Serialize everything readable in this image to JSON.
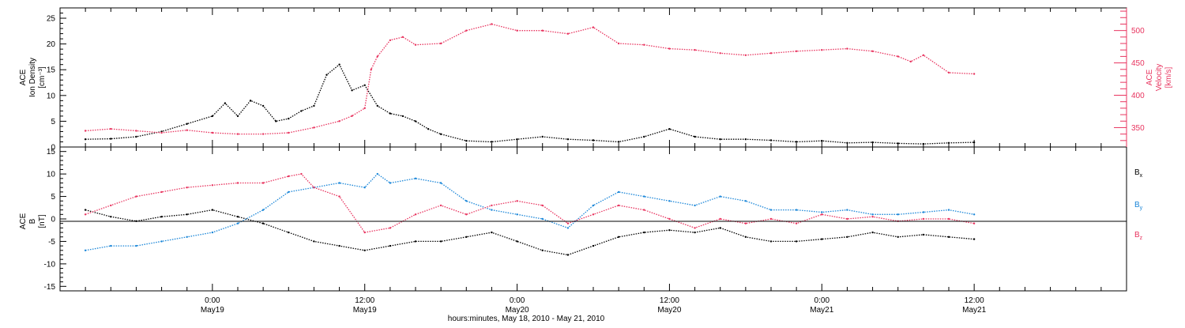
{
  "chart_data": [
    {
      "type": "scatter",
      "panel": "plasma",
      "ylabel_left": [
        "ACE",
        "Ion Density",
        "[cm⁻³]"
      ],
      "ylabel_right": [
        "ACE",
        "Velocity",
        "[km/s]"
      ],
      "ylim_left": [
        0,
        27
      ],
      "yticks_left": [
        "0",
        "5",
        "10",
        "15",
        "20",
        "25"
      ],
      "ylim_right": [
        320,
        535
      ],
      "yticks_right": [
        "350",
        "400",
        "450",
        "500"
      ],
      "colors": {
        "density": "#000000",
        "velocity": "#e8345f"
      },
      "series": [
        {
          "axis": "left",
          "color": "#000000",
          "x": [
            -10,
            -8,
            -6,
            -4,
            -2,
            0,
            1,
            2,
            3,
            4,
            5,
            6,
            7,
            8,
            9,
            10,
            11,
            12,
            13,
            14,
            15,
            16,
            17,
            18,
            20,
            22,
            24,
            26,
            28,
            30,
            32,
            34,
            36,
            38,
            40,
            42,
            44,
            46,
            48,
            50,
            52,
            54,
            56,
            58,
            60
          ],
          "y": [
            1.5,
            1.6,
            2.0,
            3.0,
            4.5,
            6.0,
            8.5,
            6.0,
            9.0,
            8.0,
            5.0,
            5.5,
            7.0,
            8.0,
            14.0,
            16.0,
            11.0,
            12.0,
            8.0,
            6.5,
            6.0,
            5.0,
            3.5,
            2.5,
            1.2,
            1.0,
            1.5,
            2.0,
            1.5,
            1.3,
            1.0,
            2.0,
            3.5,
            2.0,
            1.5,
            1.5,
            1.3,
            1.0,
            1.2,
            0.8,
            0.9,
            0.7,
            0.6,
            0.8,
            0.9
          ]
        },
        {
          "axis": "right",
          "color": "#e8345f",
          "x": [
            -10,
            -8,
            -6,
            -4,
            -2,
            0,
            2,
            4,
            6,
            8,
            10,
            11,
            12,
            12.5,
            13,
            14,
            15,
            16,
            18,
            20,
            22,
            24,
            26,
            28,
            30,
            32,
            34,
            36,
            38,
            40,
            42,
            44,
            46,
            48,
            50,
            52,
            54,
            55,
            56,
            58,
            60
          ],
          "y": [
            345,
            348,
            345,
            342,
            346,
            342,
            340,
            340,
            342,
            350,
            360,
            368,
            380,
            440,
            460,
            485,
            490,
            478,
            480,
            500,
            510,
            500,
            500,
            495,
            505,
            480,
            478,
            472,
            470,
            465,
            462,
            465,
            468,
            470,
            472,
            468,
            460,
            452,
            462,
            435,
            433
          ]
        }
      ]
    },
    {
      "type": "scatter",
      "panel": "magnetic-field",
      "ylabel_left": [
        "ACE",
        "B",
        "[nT]"
      ],
      "ylim": [
        -16,
        16
      ],
      "yticks": [
        "-15",
        "-10",
        "-5",
        "0",
        "5",
        "10",
        "15"
      ],
      "zero_line": true,
      "legend": [
        "Bₓ",
        "Bᵧ",
        "Bₔ"
      ],
      "legend_label_bx": "B",
      "legend_sub_bx": "x",
      "legend_label_by": "B",
      "legend_sub_by": "y",
      "legend_label_bz": "B",
      "legend_sub_bz": "z",
      "colors": {
        "bx": "#000000",
        "by": "#1a86d8",
        "bz": "#e8345f"
      },
      "series": [
        {
          "axis": "left",
          "color": "#000000",
          "x": [
            -10,
            -8,
            -6,
            -4,
            -2,
            0,
            2,
            4,
            6,
            8,
            10,
            12,
            14,
            16,
            18,
            20,
            22,
            24,
            26,
            28,
            30,
            32,
            34,
            36,
            38,
            40,
            42,
            44,
            46,
            48,
            50,
            52,
            54,
            56,
            58,
            60
          ],
          "y": [
            2.0,
            0.5,
            -0.5,
            0.5,
            1.0,
            2.0,
            0.5,
            -1.0,
            -3.0,
            -5.0,
            -6.0,
            -7.0,
            -6.0,
            -5.0,
            -5.0,
            -4.0,
            -3.0,
            -5.0,
            -7.0,
            -8.0,
            -6.0,
            -4.0,
            -3.0,
            -2.5,
            -3.0,
            -2.0,
            -4.0,
            -5.0,
            -5.0,
            -4.5,
            -4.0,
            -3.0,
            -4.0,
            -3.5,
            -4.0,
            -4.5
          ]
        },
        {
          "axis": "left",
          "color": "#1a86d8",
          "x": [
            -10,
            -8,
            -6,
            -4,
            -2,
            0,
            2,
            4,
            6,
            8,
            10,
            12,
            13,
            14,
            16,
            18,
            20,
            22,
            24,
            26,
            28,
            30,
            32,
            34,
            36,
            38,
            40,
            42,
            44,
            46,
            48,
            50,
            52,
            54,
            56,
            58,
            60
          ],
          "y": [
            -7.0,
            -6.0,
            -6.0,
            -5.0,
            -4.0,
            -3.0,
            -1.0,
            2.0,
            6.0,
            7.0,
            8.0,
            7.0,
            10.0,
            8.0,
            9.0,
            8.0,
            4.0,
            2.0,
            1.0,
            0.0,
            -2.0,
            3.0,
            6.0,
            5.0,
            4.0,
            3.0,
            5.0,
            4.0,
            2.0,
            2.0,
            1.5,
            2.0,
            1.0,
            1.0,
            1.5,
            2.0,
            1.0
          ]
        },
        {
          "axis": "left",
          "color": "#e8345f",
          "x": [
            -10,
            -8,
            -6,
            -4,
            -2,
            0,
            2,
            4,
            6,
            7,
            8,
            10,
            12,
            14,
            16,
            18,
            20,
            22,
            24,
            26,
            28,
            30,
            32,
            34,
            36,
            38,
            40,
            42,
            44,
            46,
            48,
            50,
            52,
            54,
            56,
            58,
            60
          ],
          "y": [
            1.0,
            3.0,
            5.0,
            6.0,
            7.0,
            7.5,
            8.0,
            8.0,
            9.5,
            10.0,
            7.0,
            5.0,
            -3.0,
            -2.0,
            1.0,
            3.0,
            1.0,
            3.0,
            4.0,
            3.0,
            -1.0,
            1.0,
            3.0,
            2.0,
            0.0,
            -2.0,
            0.0,
            -1.0,
            0.0,
            -1.0,
            1.0,
            0.0,
            0.5,
            -0.5,
            0.0,
            0.0,
            -1.0
          ]
        }
      ]
    }
  ],
  "xaxis": {
    "xlim": [
      -12,
      72
    ],
    "major_ticks": [
      0,
      12,
      24,
      36,
      48,
      60
    ],
    "minor_ticks": [
      -10,
      -8,
      -6,
      -4,
      -2,
      2,
      4,
      6,
      8,
      10,
      14,
      16,
      18,
      20,
      22,
      26,
      28,
      30,
      32,
      34,
      38,
      40,
      42,
      44,
      46,
      50,
      52,
      54,
      56,
      58,
      62,
      64,
      66,
      68,
      70
    ],
    "tick_labels": [
      {
        "x": 0,
        "time": "0:00",
        "date": "May19"
      },
      {
        "x": 12,
        "time": "12:00",
        "date": "May19"
      },
      {
        "x": 24,
        "time": "0:00",
        "date": "May20"
      },
      {
        "x": 36,
        "time": "12:00",
        "date": "May20"
      },
      {
        "x": 48,
        "time": "0:00",
        "date": "May21"
      },
      {
        "x": 60,
        "time": "12:00",
        "date": "May21"
      }
    ],
    "label": "hours:minutes, May 18, 2010 - May 21, 2010"
  }
}
